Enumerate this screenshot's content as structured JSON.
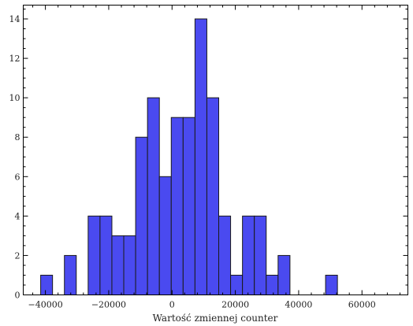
{
  "chart_data": {
    "type": "bar",
    "title": "",
    "xlabel": "Wartość zmiennej counter",
    "ylabel": "",
    "xlim": [
      -47000,
      74500
    ],
    "ylim": [
      0,
      14.7
    ],
    "bin_width": 3750,
    "bin_start": -41500,
    "values": [
      1,
      0,
      2,
      0,
      4,
      4,
      3,
      3,
      8,
      10,
      6,
      9,
      9,
      14,
      10,
      4,
      1,
      4,
      4,
      1,
      2,
      0,
      0,
      0,
      1
    ],
    "x_major_ticks": [
      -40000,
      -20000,
      0,
      20000,
      40000,
      60000
    ],
    "x_tick_labels": [
      "−40000",
      "−20000",
      "0",
      "20000",
      "40000",
      "60000"
    ],
    "x_minor_step": 4000,
    "y_major_ticks": [
      0,
      2,
      4,
      6,
      8,
      10,
      12,
      14
    ],
    "y_tick_labels": [
      "0",
      "2",
      "4",
      "6",
      "8",
      "10",
      "12",
      "14"
    ],
    "y_minor_step": 0.5,
    "colors": {
      "bar_fill": "#4a4af0",
      "bar_edge": "#1a1a1a"
    }
  }
}
